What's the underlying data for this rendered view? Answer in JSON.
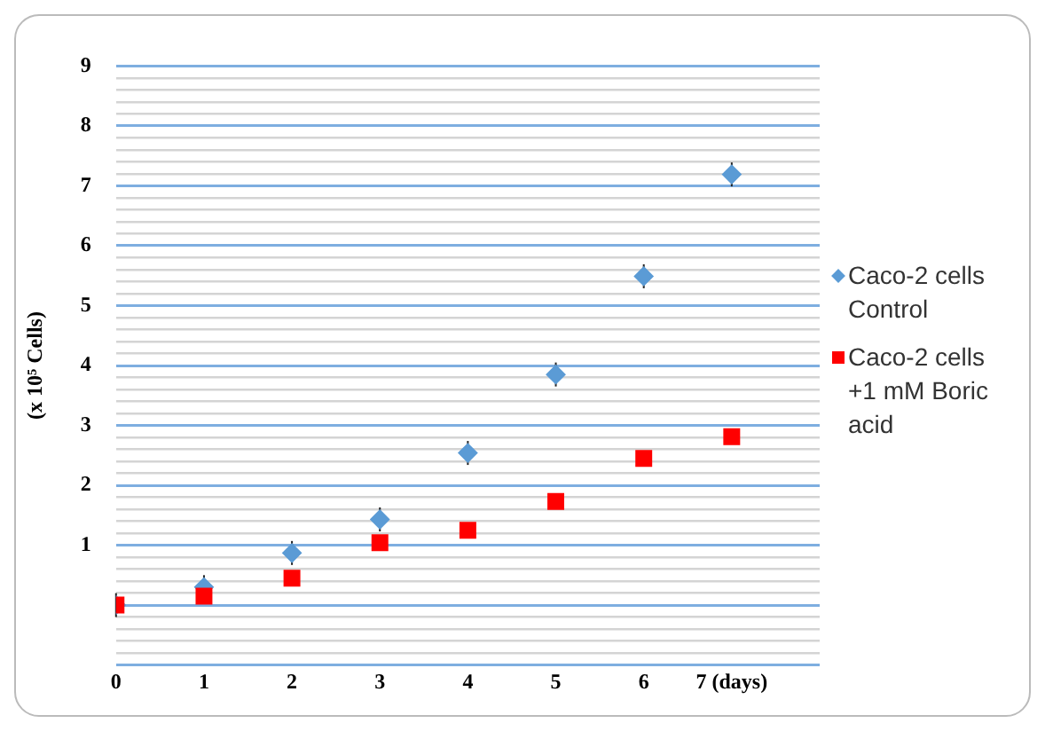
{
  "chart_data": {
    "type": "scatter",
    "ylabel": "(x 10⁵ Cells)",
    "x": [
      0,
      1,
      2,
      3,
      4,
      5,
      6,
      7
    ],
    "series": [
      {
        "name": "Caco-2 cells Control",
        "color": "#5b9bd5",
        "marker": "diamond",
        "values": [
          0,
          0.3,
          0.87,
          1.43,
          2.54,
          3.85,
          5.49,
          7.19
        ],
        "errors": [
          0.2,
          0.2,
          0.2,
          0.2,
          0.2,
          0.2,
          0.2,
          0.2
        ]
      },
      {
        "name": "Caco-2 cells +1 mM Boric acid",
        "color": "#ff0000",
        "marker": "square",
        "values": [
          0,
          0.15,
          0.45,
          1.04,
          1.25,
          1.73,
          2.45,
          2.81
        ]
      }
    ],
    "xlim": [
      0,
      8
    ],
    "xticks": [
      0,
      1,
      2,
      3,
      4,
      5,
      6,
      {
        "value": 7,
        "label": "7 (days)"
      }
    ],
    "ylim": [
      -1,
      9
    ],
    "yticks": [
      {
        "value": -1,
        "label": null
      },
      {
        "value": -0.8,
        "label": null
      },
      {
        "value": -0.6,
        "label": null
      },
      {
        "value": -0.4,
        "label": null
      },
      {
        "value": -0.2,
        "label": null
      },
      {
        "value": 0,
        "label": null
      },
      {
        "value": 0.2,
        "label": null
      },
      {
        "value": 0.4,
        "label": null
      },
      {
        "value": 0.6,
        "label": null
      },
      {
        "value": 0.8,
        "label": null
      },
      1,
      {
        "value": 1.2,
        "label": null
      },
      {
        "value": 1.4,
        "label": null
      },
      {
        "value": 1.6,
        "label": null
      },
      {
        "value": 1.8,
        "label": null
      },
      2,
      {
        "value": 2.2,
        "label": null
      },
      {
        "value": 2.4,
        "label": null
      },
      {
        "value": 2.6,
        "label": null
      },
      {
        "value": 2.8,
        "label": null
      },
      3,
      {
        "value": 3.2,
        "label": null
      },
      {
        "value": 3.4,
        "label": null
      },
      {
        "value": 3.6,
        "label": null
      },
      {
        "value": 3.8,
        "label": null
      },
      4,
      {
        "value": 4.2,
        "label": null
      },
      {
        "value": 4.4,
        "label": null
      },
      {
        "value": 4.6,
        "label": null
      },
      {
        "value": 4.8,
        "label": null
      },
      5,
      {
        "value": 5.2,
        "label": null
      },
      {
        "value": 5.4,
        "label": null
      },
      {
        "value": 5.6,
        "label": null
      },
      {
        "value": 5.8,
        "label": null
      },
      6,
      {
        "value": 6.2,
        "label": null
      },
      {
        "value": 6.4,
        "label": null
      },
      {
        "value": 6.6,
        "label": null
      },
      {
        "value": 6.8,
        "label": null
      },
      7,
      {
        "value": 7.2,
        "label": null
      },
      {
        "value": 7.4,
        "label": null
      },
      {
        "value": 7.6,
        "label": null
      },
      {
        "value": 7.8,
        "label": null
      },
      8,
      {
        "value": 8.2,
        "label": null
      },
      {
        "value": 8.4,
        "label": null
      },
      {
        "value": 8.6,
        "label": null
      },
      {
        "value": 8.8,
        "label": null
      },
      9
    ],
    "grid": "y",
    "legend": "right"
  }
}
